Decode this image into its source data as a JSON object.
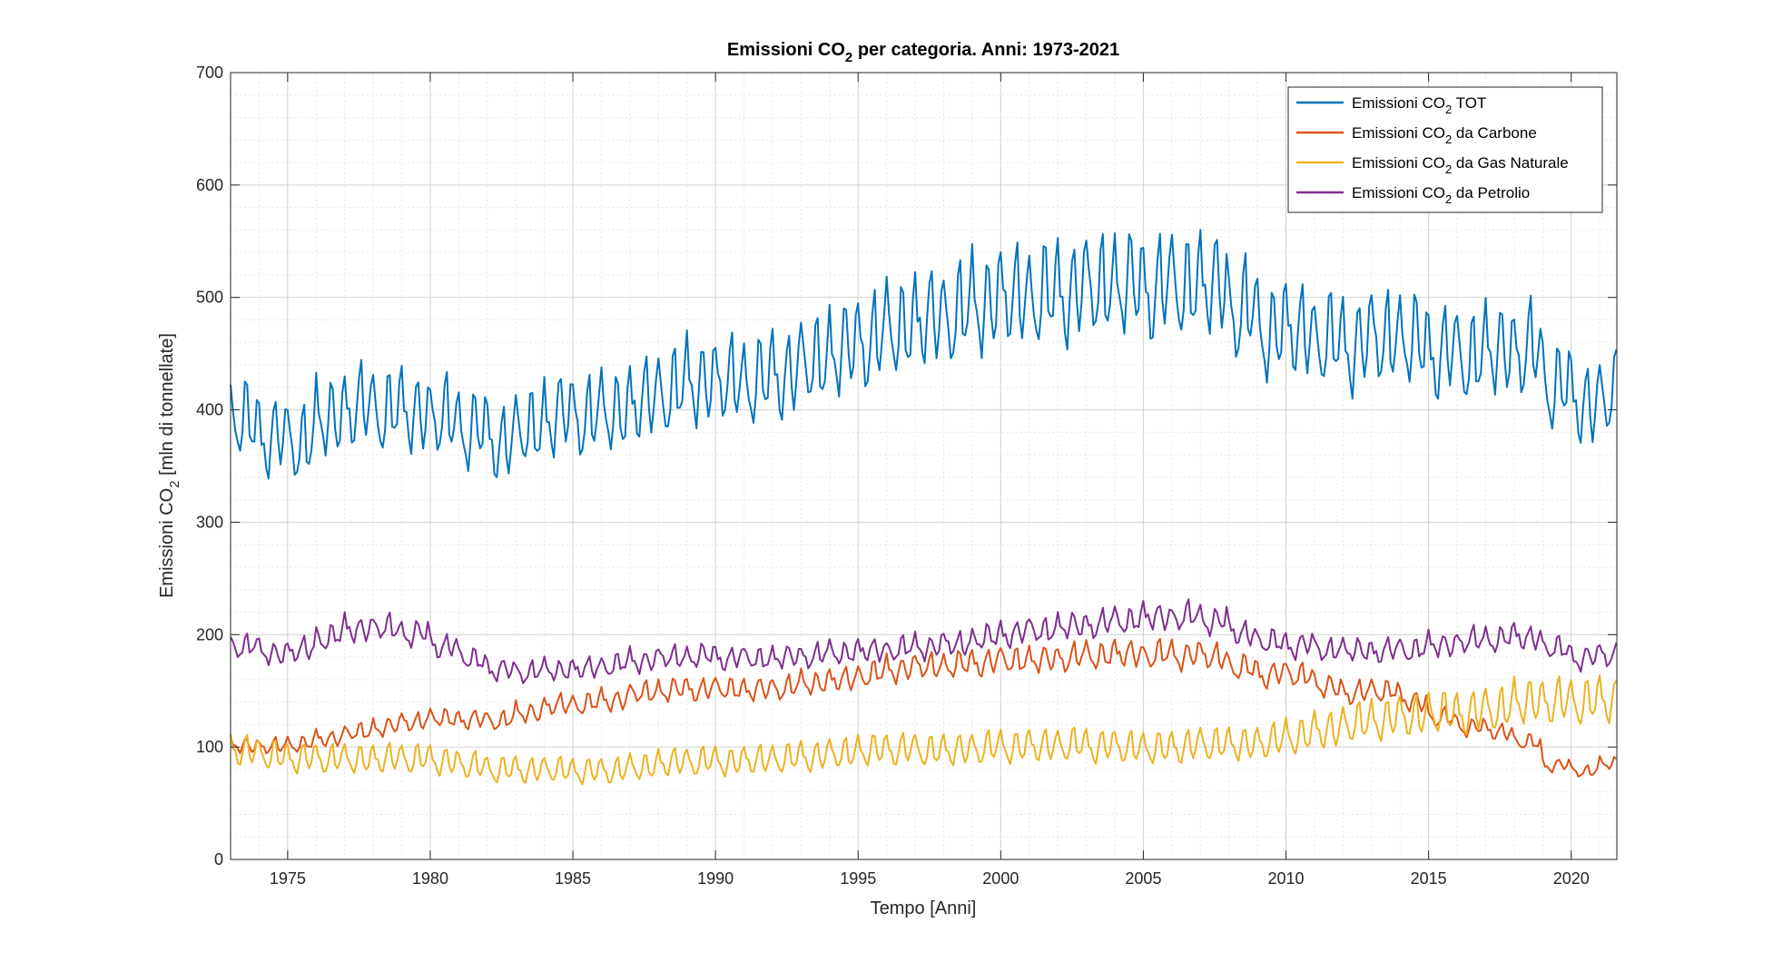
{
  "chart_data": {
    "type": "line",
    "title": {
      "main": "Emissioni CO",
      "sub": "2",
      "rest": " per categoria. Anni: 1973-2021"
    },
    "xlabel": "Tempo [Anni]",
    "ylabel": {
      "main": "Emissioni CO",
      "sub": "2",
      "rest": " [mln di tonnellate]"
    },
    "xlim": [
      1973,
      2021.6
    ],
    "ylim": [
      0,
      700
    ],
    "x_ticks": [
      1975,
      1980,
      1985,
      1990,
      1995,
      2000,
      2005,
      2010,
      2015,
      2020
    ],
    "y_ticks": [
      0,
      100,
      200,
      300,
      400,
      500,
      600,
      700
    ],
    "grid": true,
    "minor_grid": true,
    "legend_position": "top-right",
    "series": [
      {
        "name": "Emissioni CO2 TOT",
        "legend": {
          "main": "Emissioni CO",
          "sub": "2",
          "rest": " TOT"
        },
        "color": "#0072BD",
        "amp": 0.75,
        "years": [
          1973,
          1974,
          1975,
          1976,
          1977,
          1978,
          1979,
          1980,
          1981,
          1982,
          1983,
          1984,
          1985,
          1986,
          1987,
          1988,
          1989,
          1990,
          1991,
          1992,
          1993,
          1994,
          1995,
          1996,
          1997,
          1998,
          1999,
          2000,
          2001,
          2002,
          2003,
          2004,
          2005,
          2006,
          2007,
          2008,
          2009,
          2010,
          2011,
          2012,
          2013,
          2014,
          2015,
          2016,
          2017,
          2018,
          2019,
          2020,
          2021
        ],
        "levels": [
          395,
          380,
          365,
          375,
          405,
          395,
          400,
          390,
          390,
          370,
          370,
          390,
          395,
          390,
          400,
          410,
          420,
          425,
          420,
          425,
          435,
          445,
          455,
          465,
          475,
          480,
          485,
          500,
          495,
          500,
          505,
          510,
          505,
          505,
          510,
          505,
          465,
          470,
          465,
          450,
          460,
          465,
          450,
          445,
          445,
          455,
          445,
          395,
          410
        ]
      },
      {
        "name": "Emissioni CO2 da Carbone",
        "legend": {
          "main": "Emissioni CO",
          "sub": "2",
          "rest": " da Carbone"
        },
        "color": "#D95319",
        "amp": 0.55,
        "years": [
          1973,
          1974,
          1975,
          1976,
          1977,
          1978,
          1979,
          1980,
          1981,
          1982,
          1983,
          1984,
          1985,
          1986,
          1987,
          1988,
          1989,
          1990,
          1991,
          1992,
          1993,
          1994,
          1995,
          1996,
          1997,
          1998,
          1999,
          2000,
          2001,
          2002,
          2003,
          2004,
          2005,
          2006,
          2007,
          2008,
          2009,
          2010,
          2011,
          2012,
          2013,
          2014,
          2015,
          2016,
          2017,
          2018,
          2019,
          2020,
          2021
        ],
        "levels": [
          102,
          100,
          100,
          105,
          110,
          115,
          120,
          125,
          125,
          122,
          125,
          135,
          138,
          138,
          145,
          150,
          150,
          152,
          150,
          150,
          155,
          158,
          160,
          168,
          170,
          172,
          172,
          178,
          175,
          178,
          180,
          182,
          182,
          180,
          182,
          178,
          160,
          168,
          160,
          145,
          150,
          150,
          130,
          120,
          115,
          112,
          95,
          72,
          85
        ]
      },
      {
        "name": "Emissioni CO2 da Gas Naturale",
        "legend": {
          "main": "Emissioni CO",
          "sub": "2",
          "rest": " da Gas Naturale"
        },
        "color": "#EDB120",
        "amp": 1.25,
        "years": [
          1973,
          1974,
          1975,
          1976,
          1977,
          1978,
          1979,
          1980,
          1981,
          1982,
          1983,
          1984,
          1985,
          1986,
          1987,
          1988,
          1989,
          1990,
          1991,
          1992,
          1993,
          1994,
          1995,
          1996,
          1997,
          1998,
          1999,
          2000,
          2001,
          2002,
          2003,
          2004,
          2005,
          2006,
          2007,
          2008,
          2009,
          2010,
          2011,
          2012,
          2013,
          2014,
          2015,
          2016,
          2017,
          2018,
          2019,
          2020,
          2021
        ],
        "levels": [
          98,
          95,
          88,
          90,
          88,
          88,
          90,
          88,
          85,
          80,
          78,
          80,
          78,
          77,
          80,
          83,
          88,
          85,
          87,
          88,
          90,
          92,
          95,
          97,
          97,
          95,
          97,
          100,
          98,
          102,
          100,
          100,
          98,
          97,
          102,
          102,
          100,
          108,
          110,
          118,
          122,
          125,
          128,
          130,
          128,
          138,
          140,
          138,
          140
        ]
      },
      {
        "name": "Emissioni CO2 da Petrolio",
        "legend": {
          "main": "Emissioni CO",
          "sub": "2",
          "rest": " da Petrolio"
        },
        "color": "#7E2F8E",
        "amp": 0.45,
        "years": [
          1973,
          1974,
          1975,
          1976,
          1977,
          1978,
          1979,
          1980,
          1981,
          1982,
          1983,
          1984,
          1985,
          1986,
          1987,
          1988,
          1989,
          1990,
          1991,
          1992,
          1993,
          1994,
          1995,
          1996,
          1997,
          1998,
          1999,
          2000,
          2001,
          2002,
          2003,
          2004,
          2005,
          2006,
          2007,
          2008,
          2009,
          2010,
          2011,
          2012,
          2013,
          2014,
          2015,
          2016,
          2017,
          2018,
          2019,
          2020,
          2021
        ],
        "levels": [
          195,
          185,
          180,
          190,
          205,
          205,
          205,
          195,
          185,
          170,
          165,
          168,
          168,
          170,
          175,
          178,
          180,
          180,
          178,
          178,
          180,
          182,
          185,
          185,
          188,
          190,
          192,
          200,
          202,
          205,
          208,
          210,
          215,
          215,
          215,
          210,
          192,
          192,
          188,
          185,
          185,
          185,
          188,
          192,
          195,
          197,
          198,
          175,
          182
        ]
      }
    ]
  }
}
